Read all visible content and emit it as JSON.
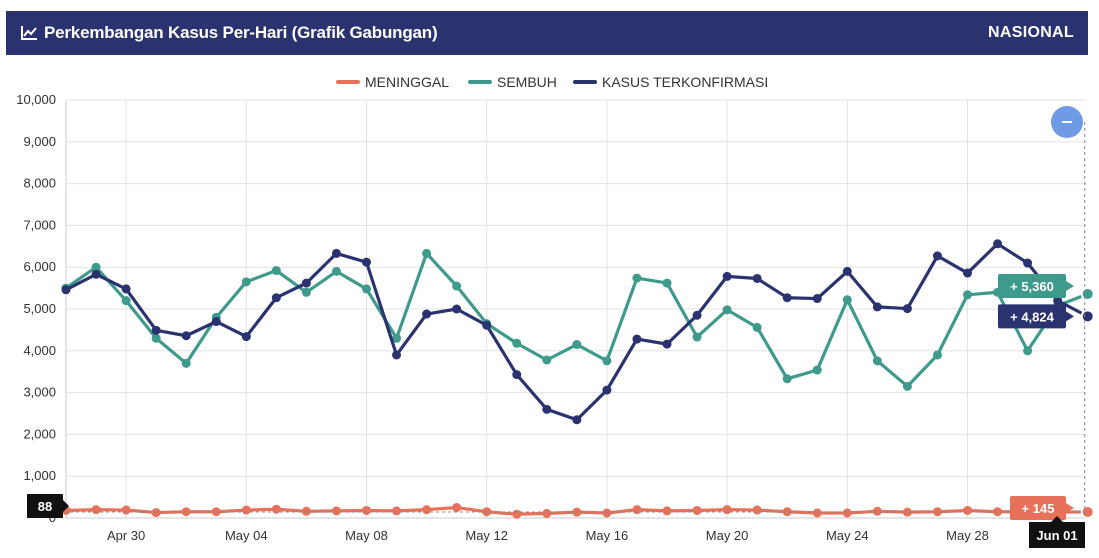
{
  "header": {
    "title": "Perkembangan Kasus Per-Hari (Grafik Gabungan)",
    "region": "NASIONAL",
    "icon": "line-chart-icon"
  },
  "zoom_button": {
    "icon": "minus-icon"
  },
  "tooltips": {
    "sembuh": "+ 5,360",
    "kasus": "+ 4,824",
    "meninggal": "+ 145",
    "crosshair_y": "88",
    "crosshair_x": "Jun 01"
  },
  "chart_data": {
    "type": "line",
    "title": "",
    "ylim": [
      0,
      10000
    ],
    "yticks": [
      0,
      1000,
      2000,
      3000,
      4000,
      5000,
      6000,
      7000,
      8000,
      9000,
      10000
    ],
    "ytick_labels": [
      "0",
      "1,000",
      "2,000",
      "3,000",
      "4,000",
      "5,000",
      "6,000",
      "7,000",
      "8,000",
      "9,000",
      "10,000"
    ],
    "x": [
      "Apr 28",
      "Apr 29",
      "Apr 30",
      "May 01",
      "May 02",
      "May 03",
      "May 04",
      "May 05",
      "May 06",
      "May 07",
      "May 08",
      "May 09",
      "May 10",
      "May 11",
      "May 12",
      "May 13",
      "May 14",
      "May 15",
      "May 16",
      "May 17",
      "May 18",
      "May 19",
      "May 20",
      "May 21",
      "May 22",
      "May 23",
      "May 24",
      "May 25",
      "May 26",
      "May 27",
      "May 28",
      "May 29",
      "May 30",
      "May 31",
      "Jun 01"
    ],
    "xtick_labels": [
      "Apr 30",
      "May 04",
      "May 08",
      "May 12",
      "May 16",
      "May 20",
      "May 24",
      "May 28"
    ],
    "xtick_dates": [
      "Apr 30",
      "May 04",
      "May 08",
      "May 12",
      "May 16",
      "May 20",
      "May 24",
      "May 28"
    ],
    "legend_position": "top-center",
    "grid": true,
    "colors": {
      "meninggal": "#e8715a",
      "sembuh": "#3e9a8b",
      "kasus": "#2b3270"
    },
    "series": [
      {
        "key": "meninggal",
        "name": "MENINGGAL",
        "values": [
          180,
          200,
          190,
          130,
          150,
          150,
          190,
          210,
          160,
          170,
          180,
          170,
          200,
          250,
          150,
          90,
          110,
          140,
          120,
          200,
          170,
          180,
          200,
          190,
          150,
          120,
          120,
          160,
          140,
          150,
          180,
          150,
          150,
          140,
          145
        ]
      },
      {
        "key": "sembuh",
        "name": "SEMBUH",
        "values": [
          5500,
          6000,
          5200,
          4300,
          3700,
          4800,
          5650,
          5920,
          5400,
          5900,
          5480,
          4300,
          6330,
          5550,
          4650,
          4180,
          3780,
          4150,
          3760,
          5740,
          5620,
          4330,
          4980,
          4560,
          3330,
          3540,
          5220,
          3760,
          3150,
          3900,
          5340,
          5400,
          4000,
          5080,
          5360
        ]
      },
      {
        "key": "kasus",
        "name": "KASUS TERKONFIRMASI",
        "values": [
          5460,
          5830,
          5480,
          4490,
          4360,
          4700,
          4340,
          5270,
          5620,
          6330,
          6120,
          3900,
          4880,
          5000,
          4610,
          3430,
          2600,
          2350,
          3060,
          4280,
          4160,
          4850,
          5780,
          5730,
          5270,
          5250,
          5900,
          5050,
          5010,
          6270,
          5860,
          6560,
          6100,
          5200,
          4824
        ]
      }
    ]
  }
}
